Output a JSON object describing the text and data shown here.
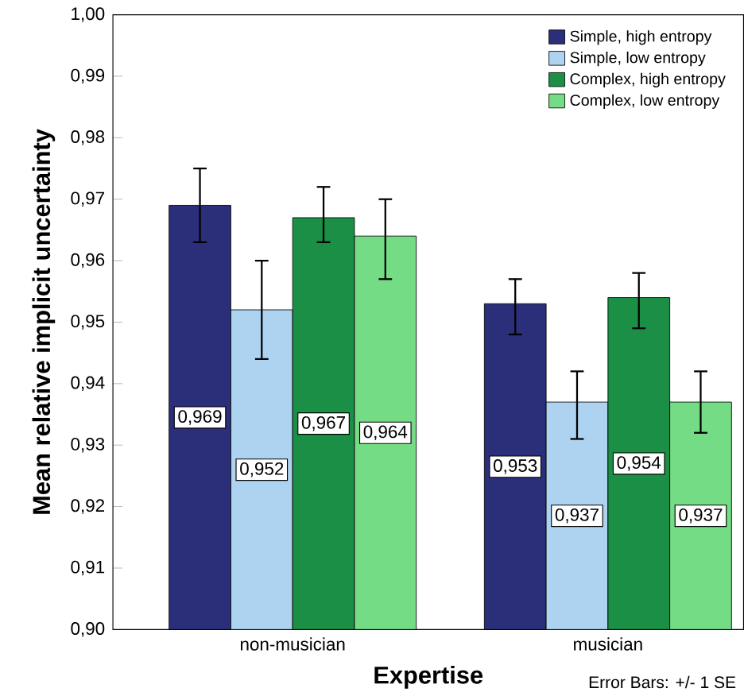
{
  "chart_data": {
    "type": "bar",
    "xlabel": "Expertise",
    "ylabel": "Mean relative implicit uncertainty",
    "categories": [
      "non-musician",
      "musician"
    ],
    "series": [
      {
        "name": "Simple, high entropy",
        "color": "#2b2f7a",
        "values": [
          0.969,
          0.953
        ],
        "value_labels": [
          "0,969",
          "0,953"
        ],
        "errors": [
          [
            0.963,
            0.975
          ],
          [
            0.948,
            0.957
          ]
        ]
      },
      {
        "name": "Simple, low entropy",
        "color": "#aed3f0",
        "values": [
          0.952,
          0.937
        ],
        "value_labels": [
          "0,952",
          "0,937"
        ],
        "errors": [
          [
            0.944,
            0.96
          ],
          [
            0.931,
            0.942
          ]
        ]
      },
      {
        "name": "Complex, high entropy",
        "color": "#1a8f45",
        "values": [
          0.967,
          0.954
        ],
        "value_labels": [
          "0,967",
          "0,954"
        ],
        "errors": [
          [
            0.963,
            0.972
          ],
          [
            0.949,
            0.958
          ]
        ]
      },
      {
        "name": "Complex, low entropy",
        "color": "#74dc85",
        "values": [
          0.964,
          0.937
        ],
        "value_labels": [
          "0,964",
          "0,937"
        ],
        "errors": [
          [
            0.957,
            0.97
          ],
          [
            0.932,
            0.942
          ]
        ]
      }
    ],
    "ylim": [
      0.9,
      1.0
    ],
    "yticks": [
      {
        "value": 0.9,
        "label": "0,90"
      },
      {
        "value": 0.91,
        "label": "0,91"
      },
      {
        "value": 0.92,
        "label": "0,92"
      },
      {
        "value": 0.93,
        "label": "0,93"
      },
      {
        "value": 0.94,
        "label": "0,94"
      },
      {
        "value": 0.95,
        "label": "0,95"
      },
      {
        "value": 0.96,
        "label": "0,96"
      },
      {
        "value": 0.97,
        "label": "0,97"
      },
      {
        "value": 0.98,
        "label": "0,98"
      },
      {
        "value": 0.99,
        "label": "0,99"
      },
      {
        "value": 1.0,
        "label": "1,00"
      }
    ],
    "legend": "top right",
    "grid": false,
    "annotations": [
      "Error Bars: +/- 1 SE"
    ]
  }
}
